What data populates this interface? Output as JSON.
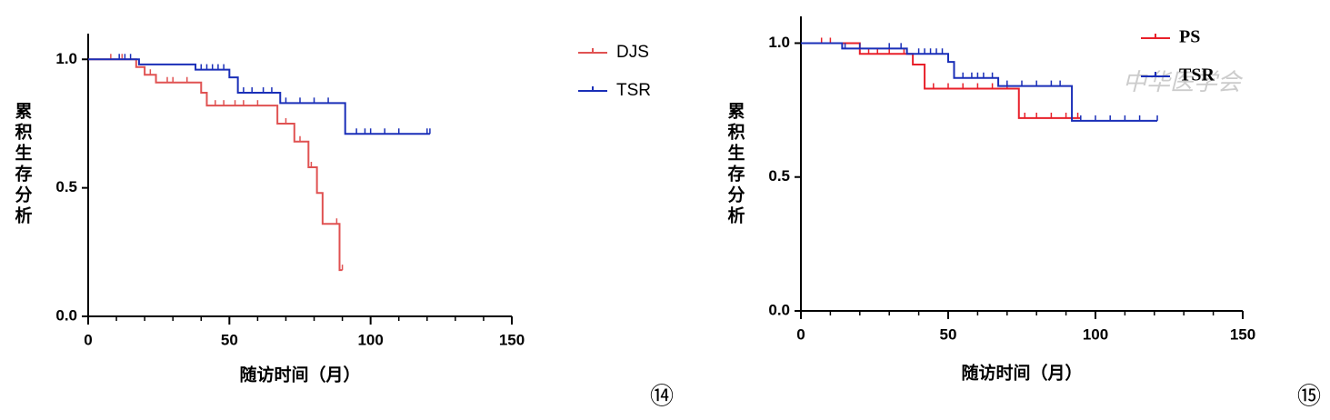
{
  "chart_data": [
    {
      "type": "step",
      "x_label": "随访时间（月）",
      "y_label": "累积生存分析",
      "panel_label": "⑭",
      "xlim": [
        0,
        150
      ],
      "xticks": [
        0,
        50,
        100,
        150
      ],
      "ylim": [
        0,
        1.1
      ],
      "yticks": [
        {
          "value": 0,
          "label": "0.0"
        },
        {
          "value": 0.5,
          "label": "0.5"
        },
        {
          "value": 1,
          "label": "1.0"
        }
      ],
      "legend": "right",
      "series": [
        {
          "name": "DJS",
          "color": "#e05252",
          "x": [
            0,
            17,
            20,
            24,
            40,
            42,
            67,
            73,
            78,
            81,
            83,
            89,
            90
          ],
          "values": [
            1.0,
            0.97,
            0.94,
            0.91,
            0.87,
            0.82,
            0.75,
            0.68,
            0.58,
            0.48,
            0.36,
            0.18,
            0.18
          ],
          "censored": [
            8,
            12,
            22,
            28,
            30,
            35,
            45,
            48,
            52,
            55,
            60,
            70,
            75,
            79,
            88,
            90
          ]
        },
        {
          "name": "TSR",
          "color": "#1a2fb8",
          "x": [
            0,
            18,
            38,
            50,
            53,
            68,
            91,
            121
          ],
          "values": [
            1.0,
            0.98,
            0.96,
            0.93,
            0.87,
            0.83,
            0.71,
            0.71
          ],
          "censored": [
            11,
            13,
            15,
            40,
            42,
            44,
            46,
            48,
            55,
            58,
            62,
            65,
            70,
            75,
            80,
            85,
            95,
            98,
            100,
            105,
            110,
            120,
            121
          ]
        }
      ]
    },
    {
      "type": "step",
      "x_label": "随访时间（月）",
      "y_label": "累积生存分析",
      "panel_label": "⑮",
      "watermark": "中华医学会",
      "xlim": [
        0,
        150
      ],
      "xticks": [
        0,
        50,
        100,
        150
      ],
      "ylim": [
        0,
        1.1
      ],
      "yticks": [
        {
          "value": 0,
          "label": "0.0"
        },
        {
          "value": 0.5,
          "label": "0.5"
        },
        {
          "value": 1,
          "label": "1.0"
        }
      ],
      "legend": "upper right",
      "series": [
        {
          "name": "PS",
          "color": "#e8202a",
          "x": [
            0,
            20,
            38,
            42,
            74,
            95
          ],
          "values": [
            1.0,
            0.96,
            0.92,
            0.83,
            0.72,
            0.72
          ],
          "censored": [
            7,
            10,
            23,
            26,
            30,
            35,
            45,
            50,
            55,
            60,
            65,
            70,
            76,
            80,
            85,
            90,
            94
          ]
        },
        {
          "name": "TSR",
          "color": "#1a2fb8",
          "x": [
            0,
            14,
            36,
            50,
            52,
            67,
            92,
            121
          ],
          "values": [
            1.0,
            0.98,
            0.96,
            0.93,
            0.87,
            0.84,
            0.71,
            0.71
          ],
          "censored": [
            15,
            20,
            30,
            34,
            36,
            40,
            42,
            44,
            46,
            48,
            55,
            58,
            60,
            62,
            65,
            70,
            75,
            80,
            85,
            88,
            95,
            100,
            105,
            110,
            115,
            121
          ]
        }
      ]
    }
  ]
}
